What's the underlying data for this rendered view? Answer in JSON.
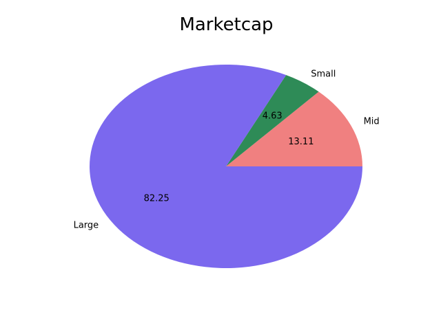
{
  "chart_data": {
    "type": "pie",
    "title": "Marketcap",
    "categories": [
      "Mid",
      "Small",
      "Large"
    ],
    "values": [
      13.11,
      4.63,
      82.25
    ],
    "value_labels": [
      "13.11",
      "4.63",
      "82.25"
    ],
    "colors": [
      "#f08080",
      "#2e8b57",
      "#7b68ee"
    ],
    "start_angle_deg": 0,
    "direction": "counterclockwise",
    "legend": "none"
  }
}
